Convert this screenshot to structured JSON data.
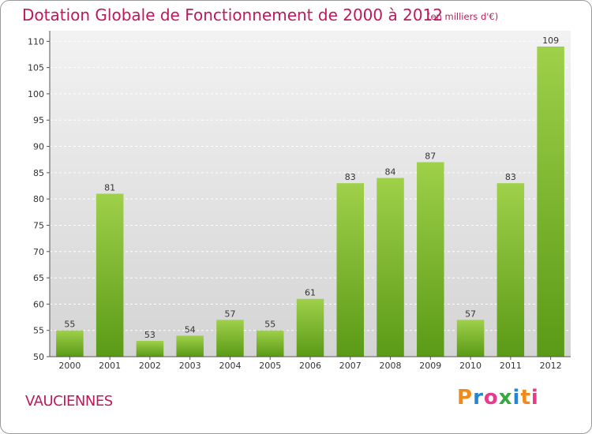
{
  "header": {
    "title": "Dotation Globale de Fonctionnement de 2000 à 2012",
    "subtitle": "(en milliers d'€)"
  },
  "footer": {
    "commune": "VAUCIENNES",
    "logo_text": "Proxiti",
    "logo_colors": [
      "#f08a1c",
      "#1e88d6",
      "#e8398a",
      "#38a83e",
      "#1e88d6",
      "#f08a1c",
      "#e8398a"
    ]
  },
  "colors": {
    "bar_light": "#9fd04a",
    "bar_dark": "#5a9a16",
    "plot_bg_top": "#f2f2f2",
    "plot_bg_bottom": "#d4d4d4",
    "accent": "#c0185b"
  },
  "chart_data": {
    "type": "bar",
    "categories": [
      "2000",
      "2001",
      "2002",
      "2003",
      "2004",
      "2005",
      "2006",
      "2007",
      "2008",
      "2009",
      "2010",
      "2011",
      "2012"
    ],
    "values": [
      55,
      81,
      53,
      54,
      57,
      55,
      61,
      83,
      84,
      87,
      57,
      83,
      109
    ],
    "data_labels": [
      "55",
      "81",
      "53",
      "54",
      "57",
      "55",
      "61",
      "83",
      "84",
      "87",
      "57",
      "83",
      "109"
    ],
    "yticks": [
      50,
      55,
      60,
      65,
      70,
      75,
      80,
      85,
      90,
      95,
      100,
      105,
      110
    ],
    "ylim": [
      50,
      112
    ],
    "grid": true
  }
}
